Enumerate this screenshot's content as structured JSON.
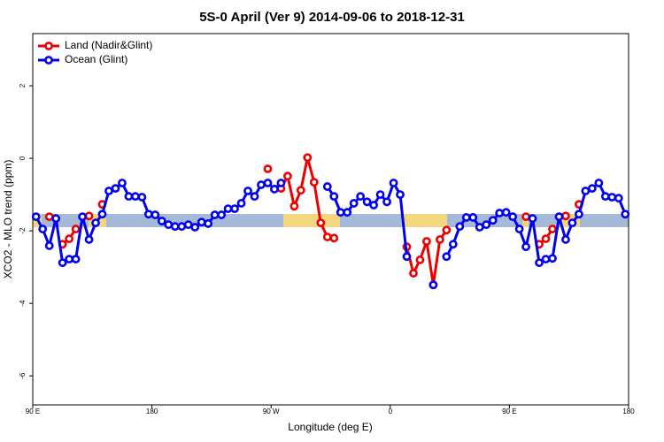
{
  "chart_data": {
    "type": "line",
    "title": "5S-0 April (Ver 9)   2014-09-06 to 2018-12-31",
    "x_label": "Longitude (deg E)",
    "y_label": "XCO2 - MLO trend (ppm)",
    "xlim": [
      90,
      540
    ],
    "xticks": [
      {
        "value": 90,
        "label": "90 E"
      },
      180,
      {
        "value": 270,
        "label": "90 W"
      },
      {
        "value": 360,
        "label": "0"
      },
      {
        "value": 450,
        "label": "90 E"
      },
      {
        "value": 540,
        "label": "180"
      }
    ],
    "ylim": [
      -6.8,
      3.44
    ],
    "yticks": [
      -6,
      -4,
      -2,
      0,
      2
    ],
    "grid": false,
    "legend": "top-left",
    "x": [
      92.5,
      97.5,
      102.5,
      107.5,
      112.5,
      117.5,
      122.5,
      127.5,
      132.5,
      137.5,
      142.5,
      147.5,
      152.5,
      157.5,
      162.5,
      167.5,
      172.5,
      177.5,
      182.5,
      187.5,
      192.5,
      197.5,
      202.5,
      207.5,
      212.5,
      217.5,
      222.5,
      227.5,
      232.5,
      237.5,
      242.5,
      247.5,
      252.5,
      257.5,
      262.5,
      267.5,
      272.5,
      277.5,
      282.5,
      287.5,
      292.5,
      297.5,
      302.5,
      307.5,
      312.5,
      317.5,
      322.5,
      327.5,
      332.5,
      337.5,
      342.5,
      347.5,
      352.5,
      357.5,
      362.5,
      367.5,
      372.5,
      377.5,
      382.5,
      387.5,
      392.5,
      397.5,
      402.5,
      407.5,
      412.5,
      417.5,
      422.5,
      427.5,
      432.5,
      437.5,
      442.5,
      447.5,
      452.5,
      457.5,
      462.5,
      467.5,
      472.5,
      477.5,
      482.5,
      487.5,
      492.5,
      497.5,
      502.5,
      507.5,
      512.5,
      517.5,
      522.5,
      527.5,
      532.5,
      537.5
    ],
    "series": [
      {
        "name": "Land (Nadir&Glint)",
        "color": "#ee0000",
        "values": [
          null,
          null,
          -1.61,
          null,
          -2.37,
          -2.22,
          -1.95,
          null,
          -1.59,
          null,
          -1.27,
          null,
          null,
          null,
          null,
          null,
          null,
          null,
          null,
          null,
          null,
          null,
          null,
          null,
          null,
          null,
          null,
          null,
          null,
          null,
          null,
          null,
          null,
          null,
          null,
          -0.29,
          null,
          -0.83,
          -0.49,
          -1.32,
          -0.88,
          0.02,
          -0.66,
          -1.78,
          -2.17,
          -2.2,
          null,
          null,
          null,
          null,
          null,
          null,
          null,
          null,
          null,
          null,
          -2.44,
          -3.17,
          -2.8,
          -2.29,
          -3.49,
          -2.24,
          -1.98,
          null,
          null,
          null,
          null,
          null,
          null,
          null,
          null,
          null,
          null,
          null,
          -1.61,
          null,
          -2.37,
          -2.22,
          -1.95,
          null,
          -1.59,
          null,
          -1.27,
          null,
          null,
          null,
          null,
          null,
          null,
          null
        ]
      },
      {
        "name": "Ocean (Glint)",
        "color": "#0000ee",
        "values": [
          -1.61,
          -1.95,
          -2.41,
          -1.66,
          -2.88,
          -2.78,
          -2.78,
          -1.61,
          -2.24,
          -1.78,
          -1.54,
          -0.9,
          -0.83,
          -0.68,
          -1.05,
          -1.05,
          -1.07,
          -1.54,
          -1.56,
          -1.73,
          -1.83,
          -1.88,
          -1.88,
          -1.83,
          -1.9,
          -1.76,
          -1.8,
          -1.56,
          -1.56,
          -1.39,
          -1.39,
          -1.24,
          -0.9,
          -1.05,
          -0.73,
          -0.68,
          -0.85,
          -0.68,
          null,
          null,
          null,
          null,
          null,
          null,
          -0.78,
          -1.05,
          -1.49,
          -1.49,
          -1.24,
          -1.05,
          -1.2,
          -1.29,
          -1.0,
          -1.2,
          -0.68,
          -1.0,
          -2.71,
          null,
          null,
          null,
          -3.49,
          null,
          -2.71,
          -2.37,
          -1.88,
          -1.63,
          -1.63,
          -1.9,
          -1.83,
          -1.71,
          -1.51,
          -1.49,
          -1.61,
          -1.95,
          -2.44,
          -1.66,
          -2.88,
          -2.78,
          -2.76,
          -1.61,
          -2.24,
          -1.78,
          -1.54,
          -0.9,
          -0.83,
          -0.68,
          -1.05,
          -1.07,
          -1.1,
          -1.54
        ]
      }
    ]
  }
}
